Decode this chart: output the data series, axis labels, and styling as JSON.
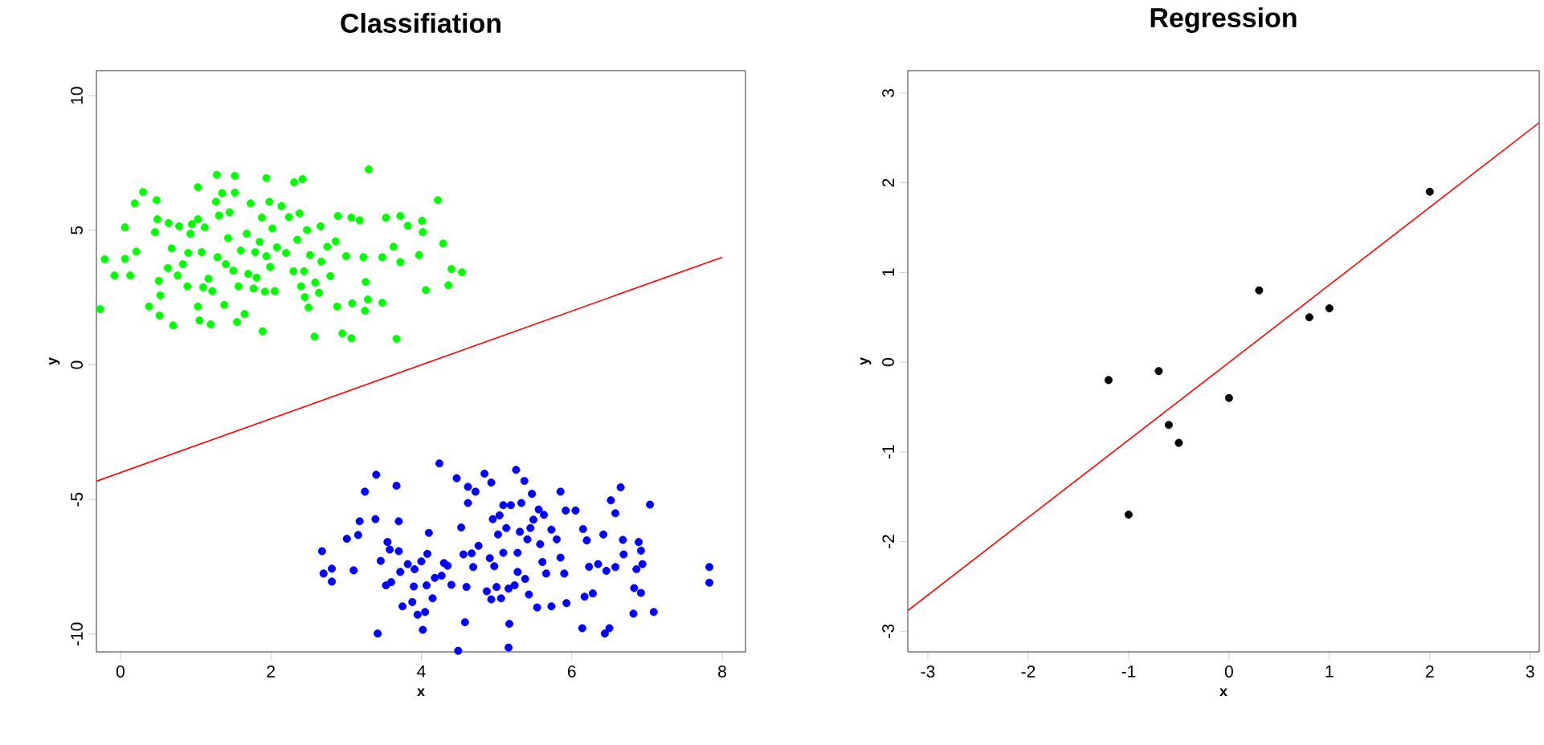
{
  "chart_data": [
    {
      "type": "scatter",
      "title": "Classifiation",
      "xlabel": "x",
      "ylabel": "y",
      "xlim": [
        -0.32,
        8.31
      ],
      "ylim": [
        -10.66,
        10.93
      ],
      "xticks": [
        0,
        2,
        4,
        6,
        8
      ],
      "yticks": [
        -10,
        -5,
        0,
        5,
        10
      ],
      "series": [
        {
          "color": "#00ff00",
          "marker": "circle",
          "x": [
            -0.27,
            -0.21,
            -0.08,
            0.06,
            0.06,
            0.13,
            0.19,
            0.21,
            0.3,
            0.38,
            0.48,
            0.46,
            0.49,
            0.51,
            0.52,
            0.53,
            0.63,
            0.64,
            0.68,
            0.7,
            0.76,
            0.78,
            0.83,
            0.89,
            0.9,
            0.93,
            0.95,
            1.03,
            1.03,
            1.05,
            1.03,
            1.08,
            1.1,
            1.12,
            1.17,
            1.2,
            1.22,
            1.27,
            1.28,
            1.29,
            1.31,
            1.35,
            1.38,
            1.4,
            1.43,
            1.45,
            1.5,
            1.52,
            1.52,
            1.55,
            1.57,
            1.6,
            1.65,
            1.68,
            1.7,
            1.73,
            1.77,
            1.79,
            1.81,
            1.85,
            1.88,
            1.89,
            1.92,
            1.94,
            1.94,
            1.98,
            1.99,
            2.02,
            2.05,
            2.08,
            2.14,
            2.2,
            2.24,
            2.3,
            2.31,
            2.35,
            2.38,
            2.4,
            2.42,
            2.44,
            2.45,
            2.48,
            2.5,
            2.52,
            2.58,
            2.59,
            2.64,
            2.67,
            2.66,
            2.75,
            2.79,
            2.86,
            2.88,
            2.89,
            2.95,
            3.0,
            3.07,
            3.07,
            3.08,
            3.18,
            3.23,
            3.25,
            3.26,
            3.29,
            3.3,
            3.48,
            3.48,
            3.53,
            3.63,
            3.67,
            3.72,
            3.72,
            3.82,
            3.97,
            4.01,
            4.02,
            4.06,
            4.22,
            4.29,
            4.36,
            4.4,
            4.54
          ],
          "values": [
            2.07,
            3.92,
            3.32,
            3.94,
            5.11,
            3.32,
            6.0,
            4.21,
            6.42,
            2.17,
            6.12,
            4.93,
            5.41,
            3.12,
            1.83,
            2.58,
            3.6,
            5.27,
            4.33,
            1.47,
            3.32,
            5.15,
            3.74,
            2.92,
            4.16,
            4.87,
            5.23,
            6.6,
            2.17,
            1.65,
            5.41,
            4.19,
            2.88,
            5.11,
            3.2,
            1.51,
            2.74,
            6.06,
            7.06,
            4.0,
            5.55,
            6.38,
            2.23,
            3.74,
            4.71,
            5.67,
            3.5,
            7.02,
            6.4,
            1.59,
            2.92,
            4.25,
            1.89,
            4.87,
            3.38,
            6.0,
            2.84,
            4.19,
            3.24,
            4.57,
            5.47,
            1.25,
            2.72,
            4.04,
            6.94,
            6.06,
            3.64,
            5.07,
            2.74,
            4.37,
            5.9,
            4.16,
            5.49,
            3.48,
            6.78,
            4.65,
            5.63,
            2.92,
            6.9,
            3.48,
            2.52,
            5.01,
            2.13,
            4.08,
            1.05,
            3.06,
            2.68,
            3.84,
            5.15,
            4.39,
            3.3,
            4.59,
            2.17,
            5.53,
            1.17,
            4.04,
            5.47,
            0.99,
            2.29,
            5.37,
            4.0,
            2.01,
            3.08,
            2.43,
            7.26,
            4.0,
            2.31,
            5.47,
            4.39,
            0.97,
            3.82,
            5.53,
            5.17,
            4.08,
            5.35,
            4.93,
            2.78,
            6.12,
            4.51,
            2.96,
            3.56,
            3.44
          ]
        },
        {
          "color": "#0000ff",
          "marker": "circle",
          "x": [
            2.68,
            2.7,
            2.81,
            2.81,
            3.01,
            3.1,
            3.16,
            3.18,
            3.25,
            3.39,
            3.4,
            3.42,
            3.46,
            3.53,
            3.55,
            3.58,
            3.6,
            3.67,
            3.7,
            3.7,
            3.72,
            3.75,
            3.82,
            3.88,
            3.9,
            3.91,
            3.95,
            4.0,
            4.02,
            4.05,
            4.07,
            4.08,
            4.1,
            4.15,
            4.18,
            4.24,
            4.27,
            4.3,
            4.35,
            4.4,
            4.47,
            4.49,
            4.53,
            4.56,
            4.58,
            4.6,
            4.62,
            4.62,
            4.67,
            4.69,
            4.72,
            4.76,
            4.84,
            4.87,
            4.91,
            4.93,
            4.93,
            4.95,
            4.97,
            5.0,
            5.02,
            5.04,
            5.06,
            5.09,
            5.09,
            5.13,
            5.16,
            5.16,
            5.17,
            5.19,
            5.24,
            5.26,
            5.28,
            5.28,
            5.31,
            5.33,
            5.37,
            5.38,
            5.41,
            5.43,
            5.45,
            5.47,
            5.49,
            5.54,
            5.56,
            5.58,
            5.61,
            5.63,
            5.66,
            5.73,
            5.73,
            5.8,
            5.85,
            5.85,
            5.9,
            5.92,
            5.93,
            6.05,
            6.14,
            6.15,
            6.17,
            6.2,
            6.23,
            6.28,
            6.35,
            6.42,
            6.44,
            6.46,
            6.5,
            6.52,
            6.58,
            6.58,
            6.65,
            6.68,
            6.69,
            6.82,
            6.83,
            6.86,
            6.89,
            6.92,
            6.92,
            6.94,
            7.04,
            7.09,
            7.83,
            7.83
          ],
          "values": [
            -6.92,
            -7.75,
            -7.57,
            -8.05,
            -6.46,
            -7.63,
            -6.32,
            -5.81,
            -4.71,
            -5.73,
            -4.08,
            -9.98,
            -7.28,
            -8.19,
            -6.58,
            -6.86,
            -8.07,
            -4.49,
            -5.81,
            -6.92,
            -7.69,
            -8.97,
            -7.4,
            -8.81,
            -8.23,
            -7.59,
            -9.28,
            -7.3,
            -9.84,
            -9.18,
            -8.19,
            -7.02,
            -6.24,
            -8.67,
            -7.91,
            -3.66,
            -7.83,
            -7.36,
            -7.46,
            -8.17,
            -4.21,
            -10.62,
            -6.04,
            -7.04,
            -9.56,
            -8.25,
            -4.53,
            -5.13,
            -7.0,
            -7.51,
            -4.71,
            -6.72,
            -4.04,
            -8.41,
            -7.18,
            -4.37,
            -8.71,
            -5.73,
            -7.48,
            -8.25,
            -6.3,
            -5.59,
            -8.67,
            -5.21,
            -6.98,
            -6.06,
            -8.31,
            -10.5,
            -9.62,
            -5.21,
            -8.19,
            -3.9,
            -7.69,
            -6.98,
            -6.2,
            -5.13,
            -4.31,
            -7.95,
            -6.48,
            -8.53,
            -6.06,
            -4.79,
            -5.75,
            -9.01,
            -5.37,
            -6.66,
            -7.32,
            -5.57,
            -7.75,
            -6.12,
            -8.97,
            -6.48,
            -7.16,
            -4.71,
            -7.75,
            -5.41,
            -8.85,
            -5.41,
            -9.78,
            -6.1,
            -8.61,
            -6.52,
            -7.5,
            -8.49,
            -7.4,
            -6.3,
            -9.98,
            -7.65,
            -9.78,
            -5.03,
            -5.51,
            -7.51,
            -4.55,
            -6.5,
            -7.04,
            -9.24,
            -8.29,
            -7.59,
            -6.58,
            -6.9,
            -8.47,
            -7.4,
            -5.19,
            -9.18,
            -8.09,
            -7.51
          ]
        },
        {
          "type": "line",
          "color": "#ff0000",
          "marker": "none",
          "x": [
            -0.32,
            8.0
          ],
          "values": [
            -4.32,
            4.0
          ]
        }
      ]
    },
    {
      "type": "scatter",
      "title": "Regression",
      "xlabel": "x",
      "ylabel": "y",
      "xlim": [
        -3.2,
        3.09
      ],
      "ylim": [
        -3.23,
        3.25
      ],
      "xticks": [
        -3,
        -2,
        -1,
        0,
        1,
        2,
        3
      ],
      "yticks": [
        -3,
        -2,
        -1,
        0,
        1,
        2,
        3
      ],
      "series": [
        {
          "color": "#000000",
          "marker": "circle",
          "x": [
            -1.2,
            -0.7,
            -1.0,
            -0.6,
            -0.5,
            0.0,
            0.3,
            0.8,
            1.0,
            2.0
          ],
          "values": [
            -0.2,
            -0.1,
            -1.7,
            -0.7,
            -0.9,
            -0.4,
            0.8,
            0.5,
            0.6,
            1.9
          ]
        },
        {
          "type": "line",
          "color": "#ff0000",
          "marker": "none",
          "x": [
            -3.2,
            3.09
          ],
          "values": [
            -2.77,
            2.67
          ]
        }
      ]
    }
  ]
}
